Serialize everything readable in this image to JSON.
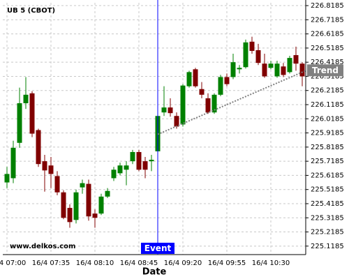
{
  "chart_data": {
    "type": "candlestick",
    "title": "UB 5 (CBOT)",
    "x_label": "Date",
    "watermark": "www.delkos.com",
    "categories": [
      "16/4 07:00",
      null,
      null,
      null,
      null,
      null,
      null,
      "16/4 07:35",
      null,
      null,
      null,
      null,
      null,
      null,
      "16/4 08:10",
      null,
      null,
      null,
      null,
      null,
      null,
      "16/4 08:45",
      null,
      null,
      null,
      null,
      null,
      null,
      "16/4 09:20",
      null,
      null,
      null,
      null,
      null,
      null,
      "16/4 09:55",
      null,
      null,
      null,
      null,
      null,
      null,
      "16/4 10:30",
      null,
      null,
      null,
      null,
      null
    ],
    "open": [
      225.5685,
      225.5985,
      225.8485,
      226.1285,
      226.1985,
      225.9385,
      225.7185,
      225.6885,
      225.6135,
      225.4985,
      225.3885,
      225.3035,
      225.5335,
      225.5585,
      225.3485,
      225.3485,
      225.4685,
      225.5985,
      225.6335,
      225.6585,
      225.7185,
      225.7835,
      225.7185,
      225.7185,
      225.7885,
      226.0635,
      226.0985,
      226.0385,
      225.9785,
      226.2485,
      226.3685,
      226.2285,
      226.1635,
      226.0635,
      226.1885,
      226.3135,
      226.3135,
      226.3685,
      226.3835,
      226.5635,
      226.5035,
      226.4085,
      226.3785,
      226.3185,
      226.3885,
      226.3485,
      226.4685,
      226.4085
    ],
    "high": [
      225.6785,
      225.8635,
      226.2385,
      226.3135,
      226.2135,
      225.9485,
      225.7635,
      225.7485,
      225.6485,
      225.5135,
      225.4135,
      225.5185,
      225.5885,
      225.5885,
      225.3785,
      225.4885,
      225.5285,
      225.6785,
      225.7085,
      225.7185,
      225.7985,
      225.7985,
      225.7485,
      225.7635,
      226.0485,
      226.2485,
      226.1635,
      226.0635,
      226.2635,
      226.3585,
      226.3785,
      226.2785,
      226.1985,
      226.1985,
      226.3285,
      226.3385,
      226.4785,
      226.3985,
      226.5785,
      226.5985,
      226.5485,
      226.4785,
      226.4285,
      226.4285,
      226.4135,
      226.4635,
      226.5285,
      226.4185
    ],
    "low": [
      225.5285,
      225.5635,
      225.8135,
      226.0885,
      225.8885,
      225.6785,
      225.5035,
      225.5285,
      225.4785,
      225.3085,
      225.2485,
      225.2785,
      225.4885,
      225.2985,
      225.2485,
      225.3385,
      225.4585,
      225.5785,
      225.6185,
      225.5485,
      225.6985,
      225.6485,
      225.5985,
      225.6485,
      225.7785,
      226.0385,
      226.0335,
      225.9485,
      225.9635,
      226.2385,
      226.2385,
      226.1635,
      226.0535,
      226.0535,
      226.1785,
      226.2485,
      226.2985,
      226.3385,
      226.3735,
      226.4785,
      226.3985,
      226.3085,
      226.3685,
      226.3085,
      226.3135,
      226.3385,
      226.3585,
      226.2485
    ],
    "close": [
      225.6285,
      225.8135,
      226.1285,
      226.1885,
      225.9135,
      225.6985,
      225.6535,
      225.6285,
      225.4985,
      225.3185,
      225.2885,
      225.4985,
      225.5635,
      225.3285,
      225.3185,
      225.4685,
      225.5085,
      225.6585,
      225.6885,
      225.6885,
      225.7835,
      225.6585,
      225.6585,
      225.7285,
      226.0385,
      226.0985,
      226.0585,
      225.9635,
      226.2535,
      226.3485,
      226.2485,
      226.1885,
      226.0635,
      226.1885,
      226.3135,
      226.2635,
      226.4185,
      226.3785,
      226.5585,
      226.4985,
      226.4135,
      226.3185,
      226.4085,
      226.4085,
      226.3285,
      226.4485,
      226.4085,
      226.3185
    ],
    "up_color": "#008000",
    "down_color": "#800000",
    "ylim": [
      225.0585,
      226.8385
    ],
    "yticks": [
      225.1185,
      225.2185,
      225.3185,
      225.4185,
      225.5185,
      225.6185,
      225.7185,
      225.8185,
      225.9185,
      226.0185,
      226.1185,
      226.2185,
      226.3185,
      226.4185,
      226.5185,
      226.6185,
      226.7185,
      226.8185
    ],
    "grid": true,
    "event": {
      "label": "Event",
      "index": 24,
      "color": "#0000ff"
    },
    "trend": {
      "label": "Trend",
      "start_index": 24,
      "start_value": 225.9085,
      "end_index": 47,
      "end_value": 226.3585,
      "color": "#808080"
    }
  }
}
